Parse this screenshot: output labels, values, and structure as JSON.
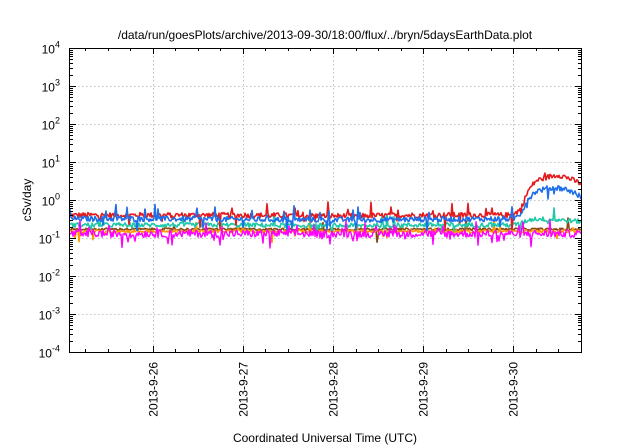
{
  "chart_data": {
    "type": "line",
    "title": "/data/run/goesPlots/archive/2013-09-30/18:00/flux/../bryn/5daysEarthData.plot",
    "xlabel": "Coordinated Universal Time (UTC)",
    "ylabel": "cSv/day",
    "yscale": "log",
    "ylim": [
      0.0001,
      10000
    ],
    "y_ticks": [
      {
        "value": 0.0001,
        "base": "10",
        "exp": "-4"
      },
      {
        "value": 0.001,
        "base": "10",
        "exp": "-3"
      },
      {
        "value": 0.01,
        "base": "10",
        "exp": "-2"
      },
      {
        "value": 0.1,
        "base": "10",
        "exp": "-1"
      },
      {
        "value": 1,
        "base": "10",
        "exp": "0"
      },
      {
        "value": 10,
        "base": "10",
        "exp": "1"
      },
      {
        "value": 100,
        "base": "10",
        "exp": "2"
      },
      {
        "value": 1000,
        "base": "10",
        "exp": "3"
      },
      {
        "value": 10000,
        "base": "10",
        "exp": "4"
      }
    ],
    "xlim": [
      "2013-09-25 02:00",
      "2013-09-30 18:00"
    ],
    "x_ticks": [
      "2013-9-26",
      "2013-9-27",
      "2013-9-28",
      "2013-9-29",
      "2013-9-30"
    ],
    "grid": true,
    "legend": "none",
    "series": [
      {
        "color": "#e41a1c",
        "x": [
          "2013-09-25 02:00",
          "2013-09-26 00:00",
          "2013-09-27 00:00",
          "2013-09-28 00:00",
          "2013-09-29 00:00",
          "2013-09-30 00:00",
          "2013-09-30 02:00",
          "2013-09-30 04:00",
          "2013-09-30 06:00",
          "2013-09-30 09:00",
          "2013-09-30 12:00",
          "2013-09-30 14:00",
          "2013-09-30 16:00",
          "2013-09-30 18:00"
        ],
        "values": [
          0.4,
          0.4,
          0.4,
          0.38,
          0.4,
          0.4,
          0.6,
          1.8,
          3.2,
          4.0,
          4.6,
          4.0,
          3.3,
          2.7
        ]
      },
      {
        "color": "#1f6fe8",
        "x": [
          "2013-09-25 02:00",
          "2013-09-26 00:00",
          "2013-09-27 00:00",
          "2013-09-28 00:00",
          "2013-09-29 00:00",
          "2013-09-30 00:00",
          "2013-09-30 02:00",
          "2013-09-30 04:00",
          "2013-09-30 06:00",
          "2013-09-30 09:00",
          "2013-09-30 12:00",
          "2013-09-30 14:00",
          "2013-09-30 16:00",
          "2013-09-30 18:00"
        ],
        "values": [
          0.32,
          0.32,
          0.31,
          0.3,
          0.31,
          0.32,
          0.45,
          1.1,
          1.7,
          2.0,
          2.1,
          1.9,
          1.6,
          1.2
        ]
      },
      {
        "color": "#20c8a8",
        "x": [
          "2013-09-25 02:00",
          "2013-09-26 00:00",
          "2013-09-27 00:00",
          "2013-09-28 00:00",
          "2013-09-29 00:00",
          "2013-09-30 00:00",
          "2013-09-30 02:00",
          "2013-09-30 04:00",
          "2013-09-30 06:00",
          "2013-09-30 09:00",
          "2013-09-30 12:00",
          "2013-09-30 14:00",
          "2013-09-30 16:00",
          "2013-09-30 18:00"
        ],
        "values": [
          0.22,
          0.22,
          0.22,
          0.21,
          0.22,
          0.22,
          0.24,
          0.3,
          0.32,
          0.31,
          0.3,
          0.29,
          0.28,
          0.27
        ]
      },
      {
        "color": "#8b4513",
        "x": [
          "2013-09-25 02:00",
          "2013-09-26 00:00",
          "2013-09-27 00:00",
          "2013-09-28 00:00",
          "2013-09-29 00:00",
          "2013-09-30 00:00",
          "2013-09-30 06:00",
          "2013-09-30 12:00",
          "2013-09-30 18:00"
        ],
        "values": [
          0.17,
          0.17,
          0.17,
          0.17,
          0.17,
          0.17,
          0.17,
          0.17,
          0.17
        ]
      },
      {
        "color": "#ff9900",
        "x": [
          "2013-09-25 02:00",
          "2013-09-26 00:00",
          "2013-09-27 00:00",
          "2013-09-28 00:00",
          "2013-09-29 00:00",
          "2013-09-30 00:00",
          "2013-09-30 06:00",
          "2013-09-30 12:00",
          "2013-09-30 18:00"
        ],
        "values": [
          0.15,
          0.15,
          0.15,
          0.15,
          0.15,
          0.15,
          0.15,
          0.15,
          0.15
        ]
      },
      {
        "color": "#ff00ff",
        "x": [
          "2013-09-25 02:00",
          "2013-09-26 00:00",
          "2013-09-27 00:00",
          "2013-09-28 00:00",
          "2013-09-29 00:00",
          "2013-09-30 00:00",
          "2013-09-30 06:00",
          "2013-09-30 12:00",
          "2013-09-30 18:00"
        ],
        "values": [
          0.13,
          0.13,
          0.13,
          0.13,
          0.13,
          0.13,
          0.13,
          0.13,
          0.13
        ]
      }
    ]
  }
}
